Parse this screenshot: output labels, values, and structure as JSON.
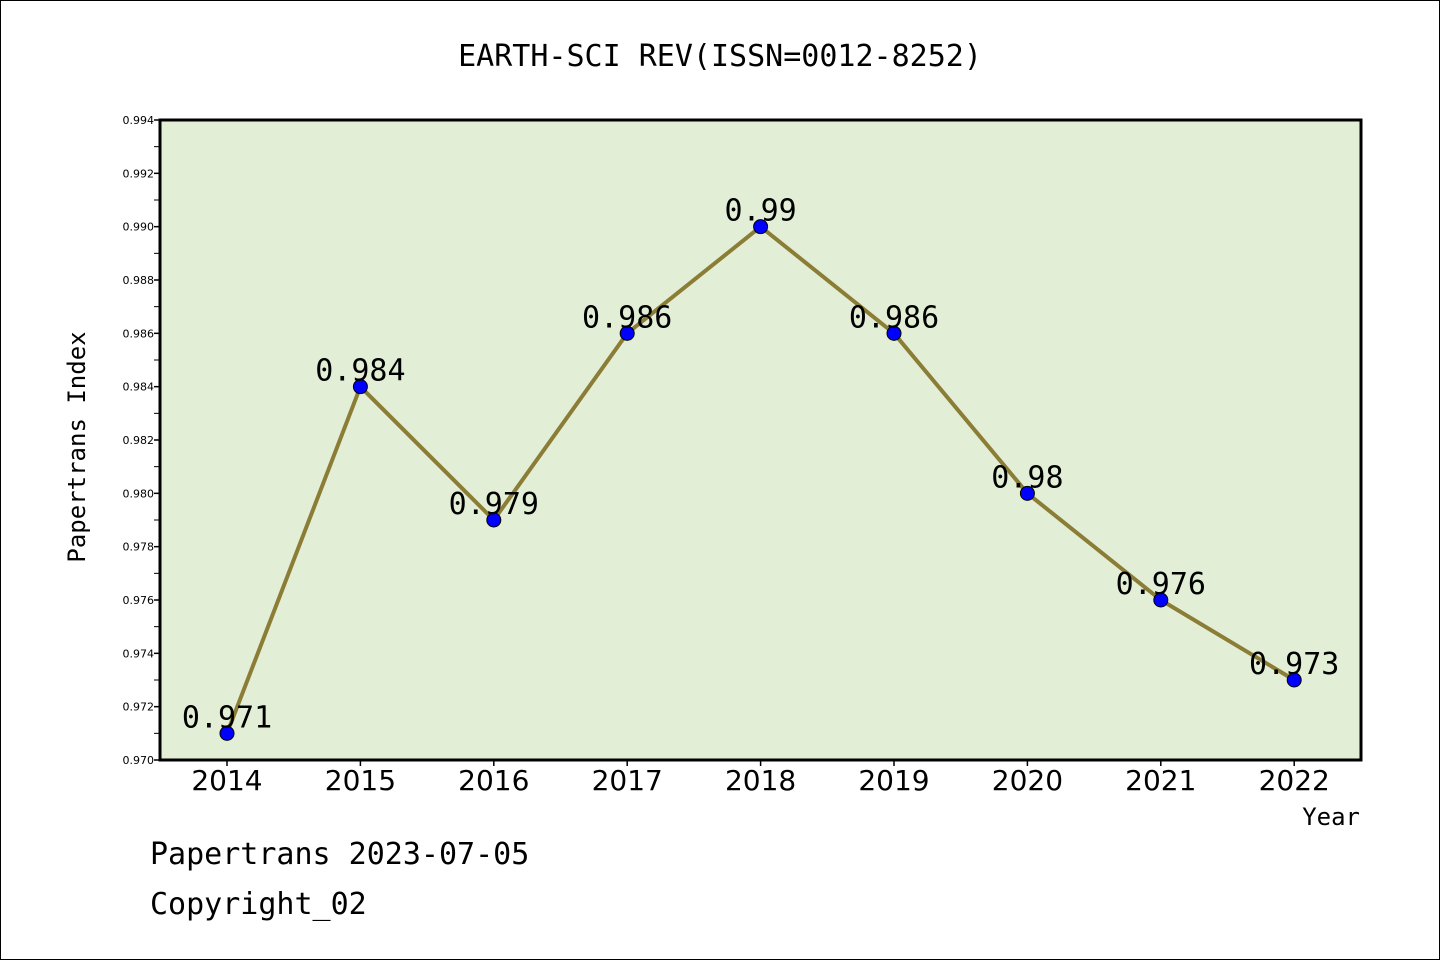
{
  "chart_data": {
    "type": "line",
    "title": "EARTH-SCI REV(ISSN=0012-8252)",
    "xlabel": "Year",
    "ylabel": "Papertrans Index",
    "x": [
      "2014",
      "2015",
      "2016",
      "2017",
      "2018",
      "2019",
      "2020",
      "2021",
      "2022"
    ],
    "series": [
      {
        "values": [
          0.971,
          0.984,
          0.979,
          0.986,
          0.99,
          0.986,
          0.98,
          0.976,
          0.973
        ],
        "data_labels": [
          "0.971",
          "0.984",
          "0.979",
          "0.986",
          "0.99",
          "0.986",
          "0.98",
          "0.976",
          "0.973"
        ]
      }
    ],
    "ylim": [
      0.97,
      0.994
    ],
    "yticks": [
      "0.970",
      "0.972",
      "0.974",
      "0.976",
      "0.978",
      "0.980",
      "0.982",
      "0.984",
      "0.986",
      "0.988",
      "0.990",
      "0.992",
      "0.994"
    ],
    "grid": false,
    "legend": "none",
    "colors": {
      "plot_background": "#e2efd6",
      "line": "#8b7d35",
      "marker": "#0000ff"
    }
  },
  "footer": {
    "date_line": "Papertrans 2023-07-05",
    "copyright": "Copyright_02"
  }
}
